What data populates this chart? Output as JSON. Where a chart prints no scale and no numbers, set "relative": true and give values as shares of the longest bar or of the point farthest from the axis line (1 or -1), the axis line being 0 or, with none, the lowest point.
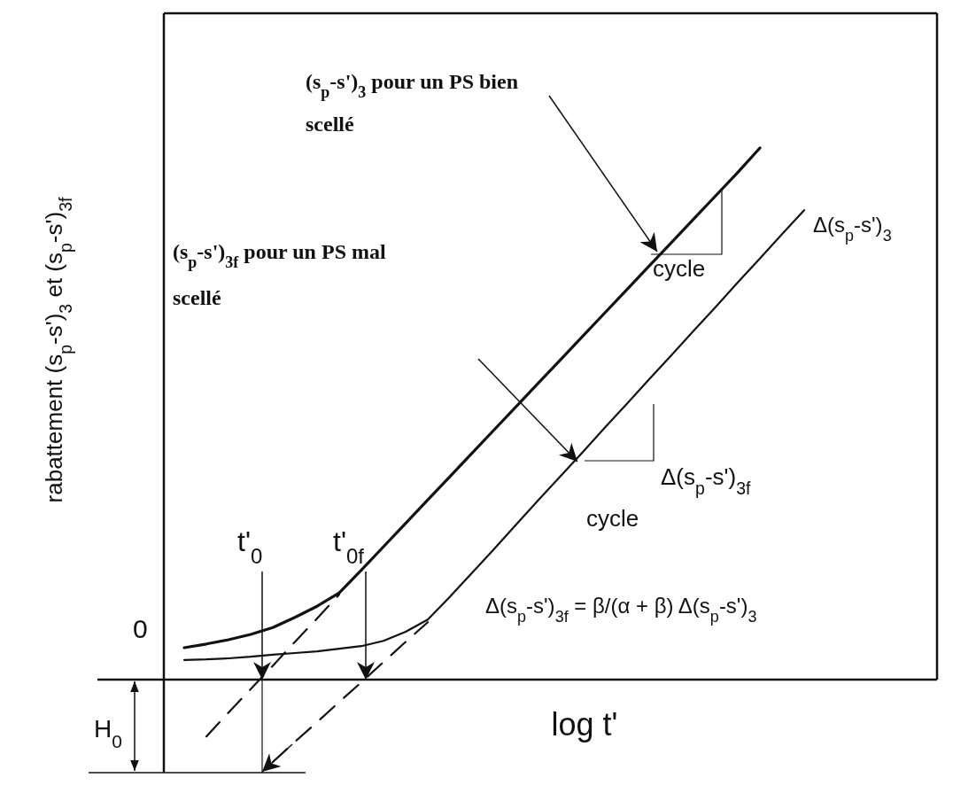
{
  "chart_data": {
    "type": "line",
    "relative": true,
    "marker": "none",
    "tick_labels": false,
    "xlabel": "log t'",
    "ylabel": "rabattement (s$_{p}$-s')$_{3}$ et (s$_{p}$-s')$_{3f}$",
    "categories": [
      null,
      null,
      null,
      null,
      null,
      null,
      null,
      null,
      null,
      null,
      null,
      null,
      null,
      null,
      null,
      null,
      null,
      null,
      null,
      null,
      null,
      null,
      null,
      null,
      null,
      null,
      null,
      null,
      null,
      null,
      null,
      null,
      null,
      null,
      null,
      null
    ],
    "series": [
      {
        "color": "#111111",
        "line_style": "solid",
        "values": [
          null,
          0.06,
          0.067,
          0.075,
          0.085,
          0.098,
          0.117,
          0.138,
          0.163,
          0.206,
          0.25,
          0.294,
          0.338,
          0.382,
          0.426,
          0.47,
          0.514,
          0.558,
          0.602,
          0.646,
          0.69,
          0.734,
          0.778,
          0.822,
          0.866,
          0.91,
          0.954,
          1,
          null,
          null,
          null,
          null,
          null,
          null,
          null,
          null
        ]
      },
      {
        "color": "#111111",
        "line_style": "solid",
        "values": [
          null,
          0.037,
          0.038,
          0.04,
          0.043,
          0.047,
          0.05,
          0.053,
          0.058,
          0.063,
          0.073,
          0.09,
          0.113,
          0.156,
          0.201,
          0.246,
          0.292,
          0.338,
          0.383,
          0.428,
          0.474,
          0.519,
          0.565,
          0.61,
          0.656,
          0.701,
          0.747,
          0.792,
          0.838,
          0.883,
          null,
          null,
          null,
          null,
          null,
          null
        ]
      },
      {
        "color": "#111111",
        "line_style": "dashed",
        "values": [
          null,
          null,
          -0.107,
          -0.062,
          -0.018,
          0.026,
          0.071,
          0.115,
          0.16,
          null,
          null,
          null,
          null,
          null,
          null,
          null,
          null,
          null,
          null,
          null,
          null,
          null,
          null,
          null,
          null,
          null,
          null,
          null,
          null,
          null,
          null,
          null,
          null,
          null,
          null,
          null
        ]
      },
      {
        "color": "#111111",
        "line_style": "dashed",
        "values": [
          null,
          null,
          null,
          null,
          null,
          -0.155,
          -0.117,
          -0.08,
          -0.042,
          -0.005,
          0.033,
          0.071,
          0.108,
          null,
          null,
          null,
          null,
          null,
          null,
          null,
          null,
          null,
          null,
          null,
          null,
          null,
          null,
          null,
          null,
          null,
          null,
          null,
          null,
          null,
          null,
          null
        ]
      }
    ],
    "annotations": [
      "(s$_{p}$-s')$_{3}$ pour un PS bien scellé",
      "(s$_{p}$-s')$_{3f}$ pour un PS mal scellé",
      "Δ(s$_{p}$-s')$_{3}$",
      "cycle",
      "Δ(s$_{p}$-s')$_{3f}$",
      "cycle",
      "Δ(s$_{p}$-s')$_{3f}$ = β/(α + β) Δ(s$_{p}$-s')$_{3}$",
      "t'$_{0}$",
      "t'$_{0f}$",
      "0",
      "H$_{0}$"
    ]
  }
}
